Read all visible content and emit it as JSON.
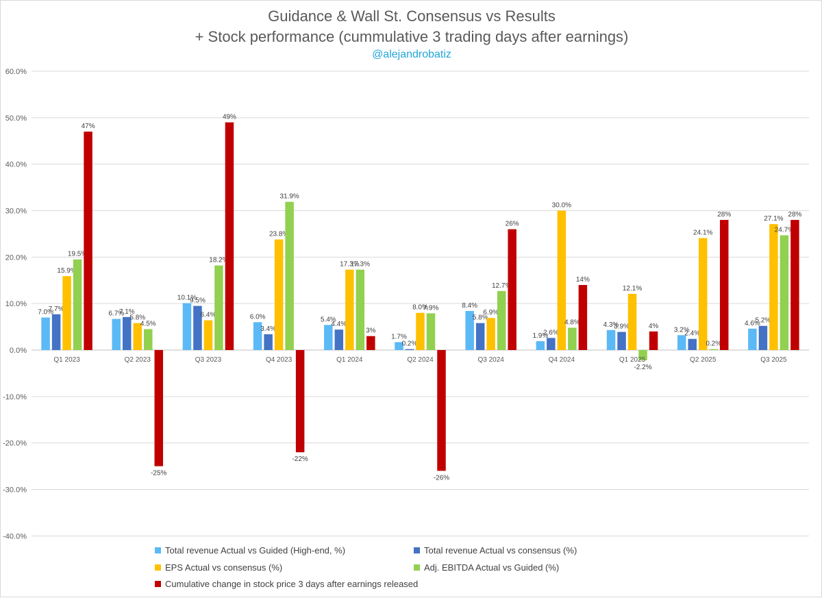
{
  "header": {
    "title_line1": "Guidance & Wall St. Consensus vs Results",
    "title_line2": "+ Stock performance (cummulative 3 trading days after earnings)",
    "handle": "@alejandrobatiz"
  },
  "chart_data": {
    "type": "bar",
    "ylim": [
      -40,
      60
    ],
    "yticks": [
      "60.0%",
      "50.0%",
      "40.0%",
      "30.0%",
      "20.0%",
      "10.0%",
      "0.0%",
      "-10.0%",
      "-20.0%",
      "-30.0%",
      "-40.0%"
    ],
    "grid": true,
    "legend_position": "bottom",
    "categories": [
      "Q1 2023",
      "Q2 2023",
      "Q3 2023",
      "Q4 2023",
      "Q1 2024",
      "Q2 2024",
      "Q3 2024",
      "Q4 2024",
      "Q1 2025",
      "Q2 2025",
      "Q3 2025"
    ],
    "series": [
      {
        "name": "Total revenue Actual vs Guided (High-end, %)",
        "color": "#5bb9f5",
        "values": [
          7.0,
          6.7,
          10.1,
          6.0,
          5.4,
          1.7,
          8.4,
          1.9,
          4.3,
          3.2,
          4.6
        ],
        "labels": [
          "7.0%",
          "6.7%",
          "10.1%",
          "6.0%",
          "5.4%",
          "1.7%",
          "8.4%",
          "1.9%",
          "4.3%",
          "3.2%",
          "4.6%"
        ]
      },
      {
        "name": "Total revenue Actual vs consensus (%)",
        "color": "#4472c4",
        "values": [
          7.7,
          7.1,
          9.5,
          3.4,
          4.4,
          0.2,
          5.8,
          2.6,
          3.9,
          2.4,
          5.2
        ],
        "labels": [
          "7.7%",
          "7.1%",
          "9.5%",
          "3.4%",
          "4.4%",
          "0.2%",
          "5.8%",
          "2.6%",
          "3.9%",
          "2.4%",
          "5.2%"
        ]
      },
      {
        "name": "EPS Actual vs consensus (%)",
        "color": "#ffc000",
        "values": [
          15.9,
          5.8,
          6.4,
          23.8,
          17.3,
          8.0,
          6.9,
          30.0,
          12.1,
          24.1,
          27.1
        ],
        "labels": [
          "15.9%",
          "5.8%",
          "6.4%",
          "23.8%",
          "17.3%",
          "8.0%",
          "6.9%",
          "30.0%",
          "12.1%",
          "24.1%",
          "27.1%"
        ]
      },
      {
        "name": "Adj. EBITDA Actual vs Guided (%)",
        "color": "#92d050",
        "values": [
          19.5,
          4.5,
          18.2,
          31.9,
          17.3,
          7.9,
          12.7,
          4.8,
          -2.2,
          0.2,
          24.7
        ],
        "labels": [
          "19.5%",
          "4.5%",
          "18.2%",
          "31.9%",
          "17.3%",
          "7.9%",
          "12.7%",
          "4.8%",
          "-2.2%",
          "0.2%",
          "24.7%"
        ]
      },
      {
        "name": "Cumulative change in stock price 3 days after earnings released",
        "color": "#c00000",
        "values": [
          47,
          -25,
          49,
          -22,
          3,
          -26,
          26,
          14,
          4,
          28,
          28
        ],
        "labels": [
          "47%",
          "-25%",
          "49%",
          "-22%",
          "3%",
          "-26%",
          "26%",
          "14%",
          "4%",
          "28%",
          "28%"
        ]
      }
    ]
  }
}
